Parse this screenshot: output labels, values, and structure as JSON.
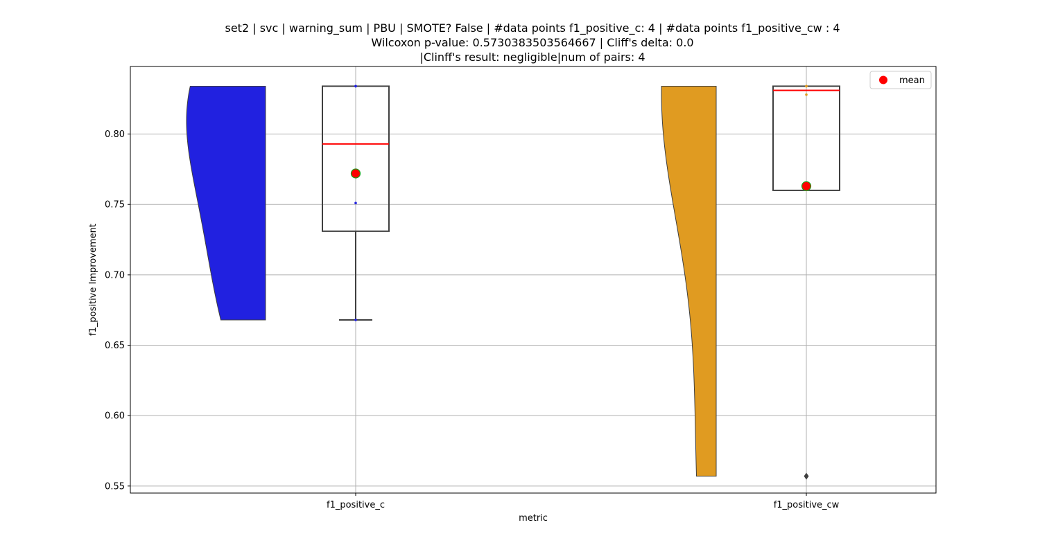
{
  "chart_data": {
    "type": "violin-box",
    "title_lines": [
      "set2 | svc | warning_sum | PBU | SMOTE? False | #data points f1_positive_c: 4 | #data points f1_positive_cw : 4",
      "Wilcoxon p-value: 0.5730383503564667 | Cliff's delta: 0.0",
      "|Clinff's result: negligible|num of pairs: 4"
    ],
    "xlabel": "metric",
    "ylabel": "f1_positive Improvement",
    "ylim": [
      0.545,
      0.848
    ],
    "yticks": [
      "0.55",
      "0.60",
      "0.65",
      "0.70",
      "0.75",
      "0.80"
    ],
    "grid": true,
    "legend": {
      "position": "top-right",
      "entries": [
        {
          "label": "mean",
          "color": "#ff0000"
        }
      ]
    },
    "categories": [
      "f1_positive_c",
      "f1_positive_cw"
    ],
    "series": [
      {
        "category": "f1_positive_c",
        "color": "#2121e0",
        "points": [
          0.668,
          0.751,
          0.834,
          0.834
        ],
        "box": {
          "min": 0.668,
          "q1": 0.731,
          "median": 0.793,
          "q3": 0.834,
          "max": 0.834
        },
        "mean": 0.772,
        "outliers": []
      },
      {
        "category": "f1_positive_cw",
        "color": "#e09b21",
        "points": [
          0.557,
          0.828,
          0.834,
          0.834
        ],
        "box": {
          "min": 0.76,
          "q1": 0.76,
          "median": 0.831,
          "q3": 0.834,
          "max": 0.834
        },
        "mean": 0.763,
        "outliers": [
          0.557
        ]
      }
    ]
  }
}
